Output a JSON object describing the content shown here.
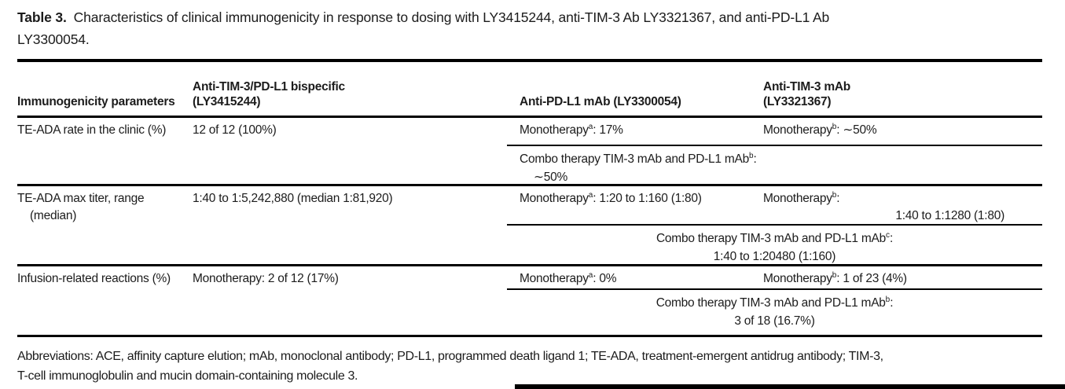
{
  "title": {
    "label": "Table 3.",
    "line1": "Characteristics of clinical immunogenicity in response to dosing with LY3415244, anti-TIM-3 Ab LY3321367, and anti-PD-L1 Ab",
    "line2": "LY3300054."
  },
  "table": {
    "header": {
      "col1": "Immunogenicity parameters",
      "col2": {
        "line1": "Anti-TIM-3/PD-L1 bispecific",
        "line2": "(LY3415244)"
      },
      "col3": "Anti-PD-L1 mAb (LY3300054)",
      "col4": {
        "line1": "Anti-TIM-3 mAb",
        "line2": "(LY3321367)"
      }
    },
    "rows": {
      "te_ada_rate": {
        "parameter": "TE-ADA rate in the clinic (%)",
        "bispecific": "12 of 12 (100%)",
        "pdl1_mono": {
          "pre": "Monotherapy",
          "sup": "a",
          "post": ": 17%"
        },
        "tim3_mono": {
          "pre": "Monotherapy",
          "sup": "b",
          "post": ": ∼50%"
        },
        "combo": {
          "pre": "Combo therapy TIM-3 mAb and PD-L1 mAb",
          "sup": "b",
          "post": ":",
          "value": "∼50%"
        }
      },
      "te_ada_titer": {
        "parameter": {
          "line1": "TE-ADA max titer, range",
          "line2": "(median)"
        },
        "bispecific": "1:40 to 1:5,242,880 (median 1:81,920)",
        "pdl1_mono": {
          "pre": "Monotherapy",
          "sup": "a",
          "post": ": 1:20 to 1:160 (1:80)"
        },
        "tim3_mono": {
          "pre": "Monotherapy",
          "sup": "b",
          "post": ":",
          "line2": "1:40 to 1:1280 (1:80)"
        },
        "combo": {
          "pre": "Combo therapy TIM-3 mAb and PD-L1 mAb",
          "sup": "c",
          "post": ":",
          "value": "1:40 to 1:20480 (1:160)"
        }
      },
      "infusion_reactions": {
        "parameter": "Infusion-related reactions (%)",
        "bispecific": "Monotherapy: 2 of 12 (17%)",
        "pdl1_mono": {
          "pre": "Monotherapy",
          "sup": "a",
          "post": ": 0%"
        },
        "tim3_mono": {
          "pre": "Monotherapy",
          "sup": "b",
          "post": ": 1 of 23 (4%)"
        },
        "combo": {
          "pre": "Combo therapy TIM-3 mAb and PD-L1 mAb",
          "sup": "b",
          "post": ":",
          "value": "3 of 18 (16.7%)"
        }
      }
    }
  },
  "footnote": {
    "line1": "Abbreviations: ACE, affinity capture elution; mAb, monoclonal antibody; PD-L1, programmed death ligand 1; TE-ADA, treatment-emergent antidrug antibody; TIM-3,",
    "line2": "T-cell immunoglobulin and mucin domain-containing molecule 3."
  }
}
